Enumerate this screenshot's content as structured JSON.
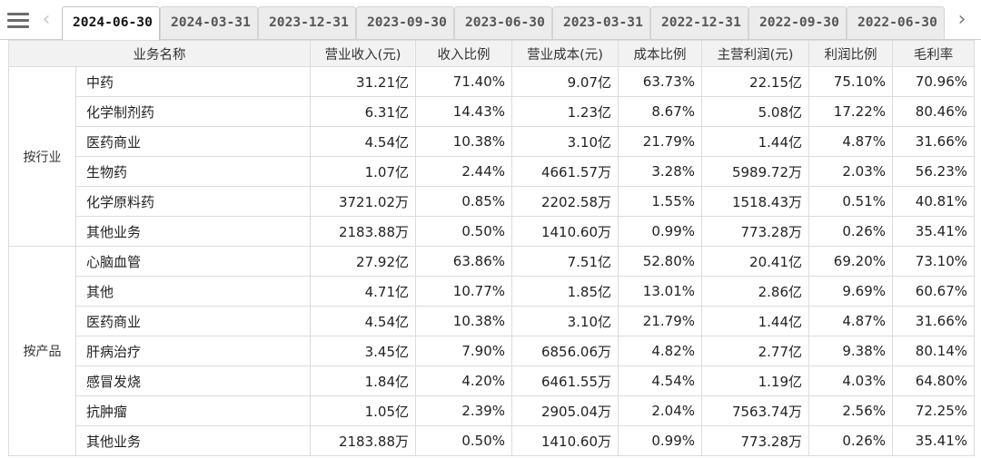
{
  "tabs": {
    "menu_icon": "hamburger-menu-icon",
    "prev_arrow": "‹",
    "next_arrow": "›",
    "items": [
      "2024-06-30",
      "2024-03-31",
      "2023-12-31",
      "2023-09-30",
      "2023-06-30",
      "2023-03-31",
      "2022-12-31",
      "2022-09-30",
      "2022-06-30"
    ],
    "active_index": 0
  },
  "table": {
    "headers": [
      "业务名称",
      "营业收入(元)",
      "收入比例",
      "营业成本(元)",
      "成本比例",
      "主营利润(元)",
      "利润比例",
      "毛利率"
    ],
    "groups": [
      {
        "label": "按行业",
        "rows": [
          [
            "中药",
            "31.21亿",
            "71.40%",
            "9.07亿",
            "63.73%",
            "22.15亿",
            "75.10%",
            "70.96%"
          ],
          [
            "化学制剂药",
            "6.31亿",
            "14.43%",
            "1.23亿",
            "8.67%",
            "5.08亿",
            "17.22%",
            "80.46%"
          ],
          [
            "医药商业",
            "4.54亿",
            "10.38%",
            "3.10亿",
            "21.79%",
            "1.44亿",
            "4.87%",
            "31.66%"
          ],
          [
            "生物药",
            "1.07亿",
            "2.44%",
            "4661.57万",
            "3.28%",
            "5989.72万",
            "2.03%",
            "56.23%"
          ],
          [
            "化学原料药",
            "3721.02万",
            "0.85%",
            "2202.58万",
            "1.55%",
            "1518.43万",
            "0.51%",
            "40.81%"
          ],
          [
            "其他业务",
            "2183.88万",
            "0.50%",
            "1410.60万",
            "0.99%",
            "773.28万",
            "0.26%",
            "35.41%"
          ]
        ]
      },
      {
        "label": "按产品",
        "rows": [
          [
            "心脑血管",
            "27.92亿",
            "63.86%",
            "7.51亿",
            "52.80%",
            "20.41亿",
            "69.20%",
            "73.10%"
          ],
          [
            "其他",
            "4.71亿",
            "10.77%",
            "1.85亿",
            "13.01%",
            "2.86亿",
            "9.69%",
            "60.67%"
          ],
          [
            "医药商业",
            "4.54亿",
            "10.38%",
            "3.10亿",
            "21.79%",
            "1.44亿",
            "4.87%",
            "31.66%"
          ],
          [
            "肝病治疗",
            "3.45亿",
            "7.90%",
            "6856.06万",
            "4.82%",
            "2.77亿",
            "9.38%",
            "80.14%"
          ],
          [
            "感冒发烧",
            "1.84亿",
            "4.20%",
            "6461.55万",
            "4.54%",
            "1.19亿",
            "4.03%",
            "64.80%"
          ],
          [
            "抗肿瘤",
            "1.05亿",
            "2.39%",
            "2905.04万",
            "2.04%",
            "7563.74万",
            "2.56%",
            "72.25%"
          ],
          [
            "其他业务",
            "2183.88万",
            "0.50%",
            "1410.60万",
            "0.99%",
            "773.28万",
            "0.26%",
            "35.41%"
          ]
        ]
      }
    ]
  }
}
